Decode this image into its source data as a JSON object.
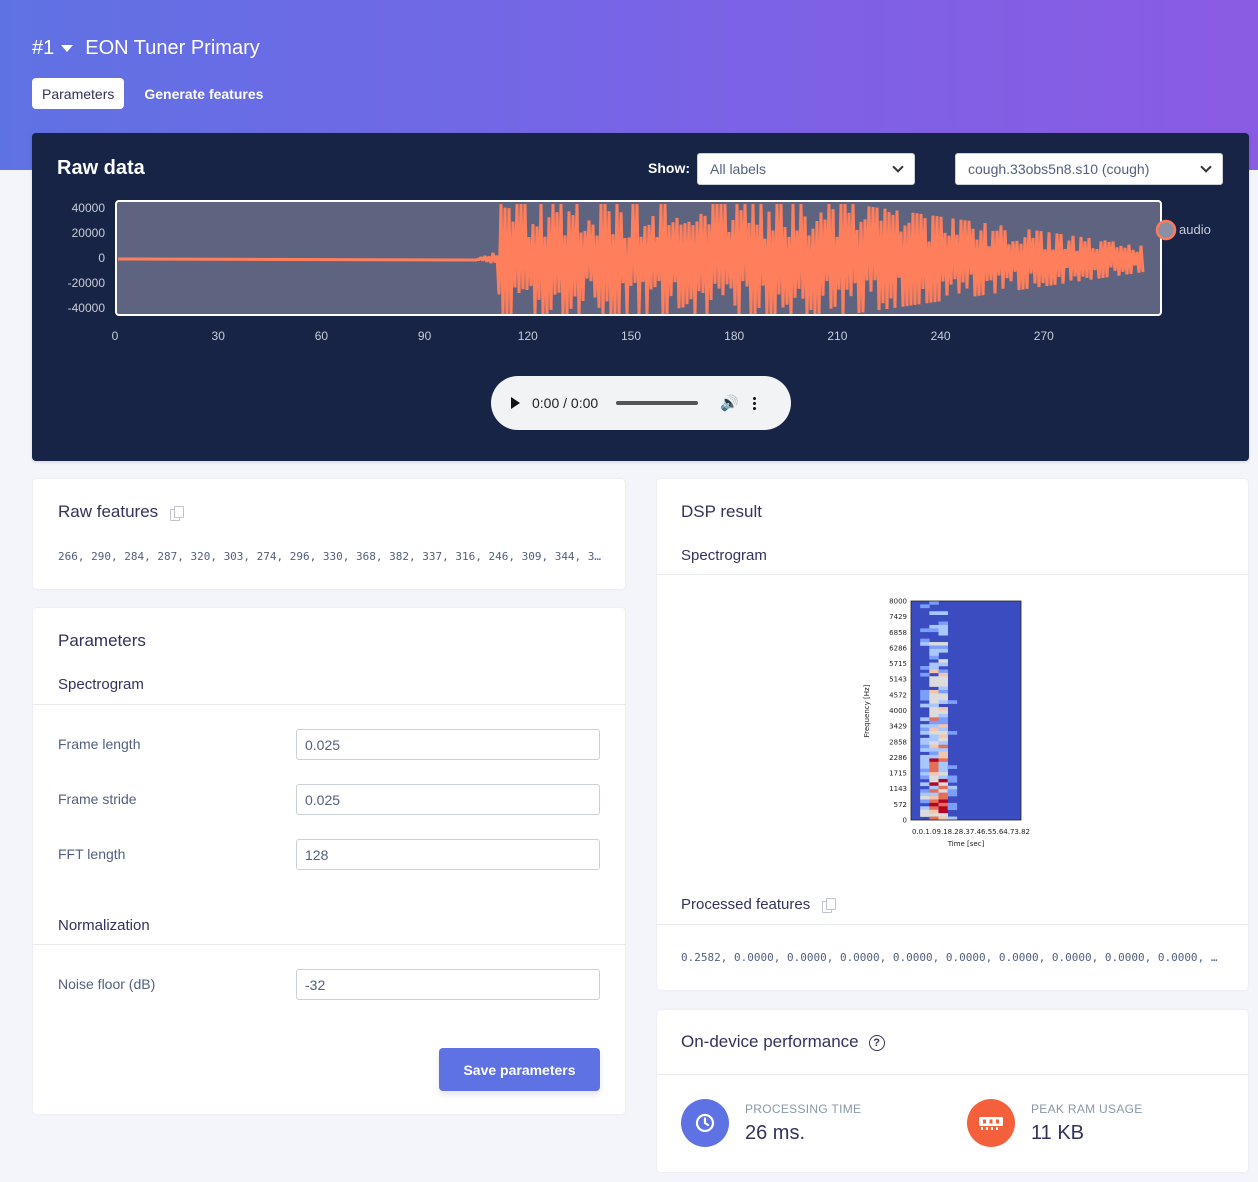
{
  "header": {
    "impulse_number": "#1",
    "impulse_name": "EON Tuner Primary",
    "tabs": [
      {
        "label": "Parameters",
        "active": true
      },
      {
        "label": "Generate features",
        "active": false
      }
    ]
  },
  "raw_data": {
    "title": "Raw data",
    "show_label": "Show:",
    "label_filter": "All labels",
    "sample_select": "cough.33obs5n8.s10 (cough)",
    "legend": "audio",
    "y_ticks": [
      "40000",
      "20000",
      "0",
      "-20000",
      "-40000"
    ],
    "x_ticks": [
      "0",
      "30",
      "60",
      "90",
      "120",
      "150",
      "180",
      "210",
      "240",
      "270"
    ],
    "audio": {
      "time": "0:00 / 0:00"
    }
  },
  "raw_features": {
    "title": "Raw features",
    "values": "266, 290, 284, 287, 320, 303, 274, 296, 330, 368, 382, 337, 316, 246, 309, 344, 3…"
  },
  "parameters": {
    "title": "Parameters",
    "spectrogram_title": "Spectrogram",
    "fields": [
      {
        "label": "Frame length",
        "value": "0.025"
      },
      {
        "label": "Frame stride",
        "value": "0.025"
      },
      {
        "label": "FFT length",
        "value": "128"
      }
    ],
    "normalization_title": "Normalization",
    "noise_floor": {
      "label": "Noise floor (dB)",
      "value": "-32"
    },
    "save_label": "Save parameters"
  },
  "dsp_result": {
    "title": "DSP result",
    "spectrogram_title": "Spectrogram",
    "spectrogram_plot": {
      "y_label": "Frequency [Hz]",
      "x_label": "Time [sec]",
      "y_ticks": [
        "8000",
        "7429",
        "6858",
        "6286",
        "5715",
        "5143",
        "4572",
        "4000",
        "3429",
        "2858",
        "2286",
        "1715",
        "1143",
        "572",
        "0"
      ],
      "x_ticks": "0.0.1.09.18.28.37.46.55.64.73.82"
    },
    "processed_title": "Processed features",
    "processed_values": "0.2582, 0.0000, 0.0000, 0.0000, 0.0000, 0.0000, 0.0000, 0.0000, 0.0000, 0.0000, 0…"
  },
  "performance": {
    "title": "On-device performance",
    "processing_label": "PROCESSING TIME",
    "processing_value": "26 ms.",
    "ram_label": "PEAK RAM USAGE",
    "ram_value": "11 KB",
    "colors": {
      "processing": "#5e72e4",
      "ram": "#f5603c"
    }
  }
}
